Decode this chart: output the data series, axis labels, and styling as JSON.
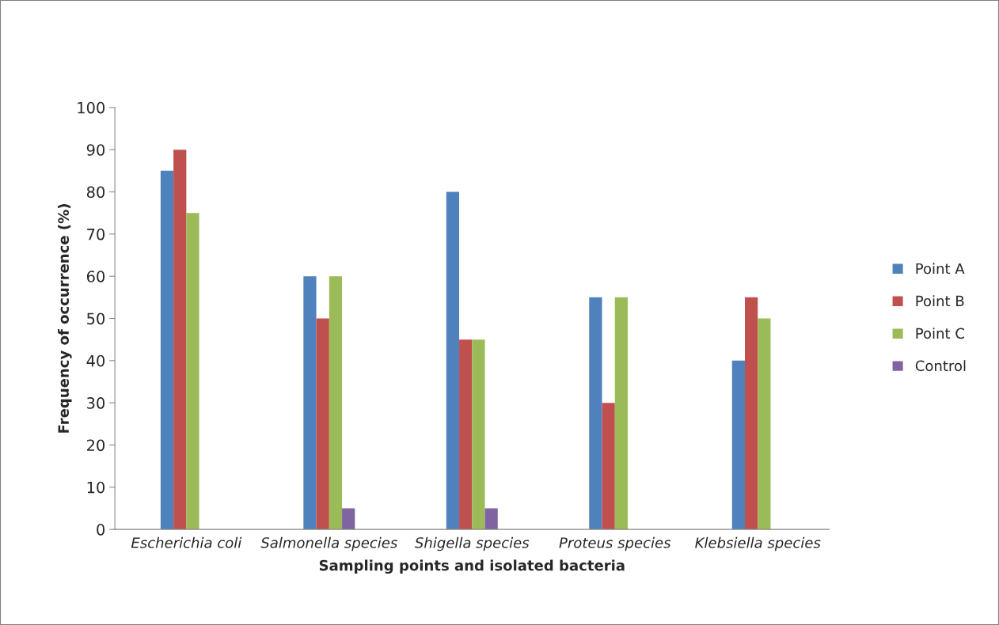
{
  "chart_data": {
    "type": "bar",
    "xlabel": "Sampling points and isolated bacteria",
    "ylabel": "Frequency of occurrence (%)",
    "categories": [
      "Escherichia coli",
      "Salmonella species",
      "Shigella species",
      "Proteus species",
      "Klebsiella species"
    ],
    "series": [
      {
        "name": "Point A",
        "color": "#4f81bd",
        "values": [
          85,
          60,
          80,
          55,
          40
        ]
      },
      {
        "name": "Point B",
        "color": "#c0504d",
        "values": [
          90,
          50,
          45,
          30,
          55
        ]
      },
      {
        "name": "Point C",
        "color": "#9bbb59",
        "values": [
          75,
          60,
          45,
          55,
          50
        ]
      },
      {
        "name": "Control",
        "color": "#8064a2",
        "values": [
          0,
          5,
          5,
          0,
          0
        ]
      }
    ],
    "ylim": [
      0,
      100
    ],
    "yticks": [
      0,
      10,
      20,
      30,
      40,
      50,
      60,
      70,
      80,
      90,
      100
    ],
    "grid": false,
    "legend": "right"
  }
}
